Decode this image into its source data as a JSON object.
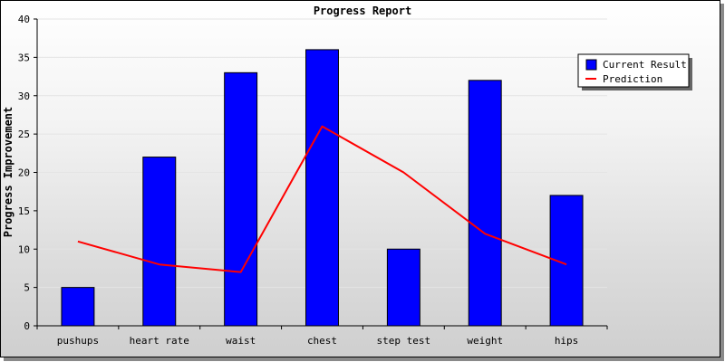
{
  "chart_data": {
    "type": "bar",
    "title": "Progress Report",
    "xlabel": "",
    "ylabel": "Progress Improvement",
    "ylim": [
      0,
      40
    ],
    "yticks": [
      0,
      5,
      10,
      15,
      20,
      25,
      30,
      35,
      40
    ],
    "categories": [
      "pushups",
      "heart rate",
      "waist",
      "chest",
      "step test",
      "weight",
      "hips"
    ],
    "series": [
      {
        "name": "Current Result",
        "type": "bar",
        "color": "#0000ff",
        "values": [
          5,
          22,
          33,
          36,
          10,
          32,
          17
        ]
      },
      {
        "name": "Prediction",
        "type": "line",
        "color": "#ff0000",
        "values": [
          11,
          8,
          7,
          26,
          20,
          12,
          8
        ]
      }
    ],
    "legend_position": "top-right",
    "grid": true
  }
}
